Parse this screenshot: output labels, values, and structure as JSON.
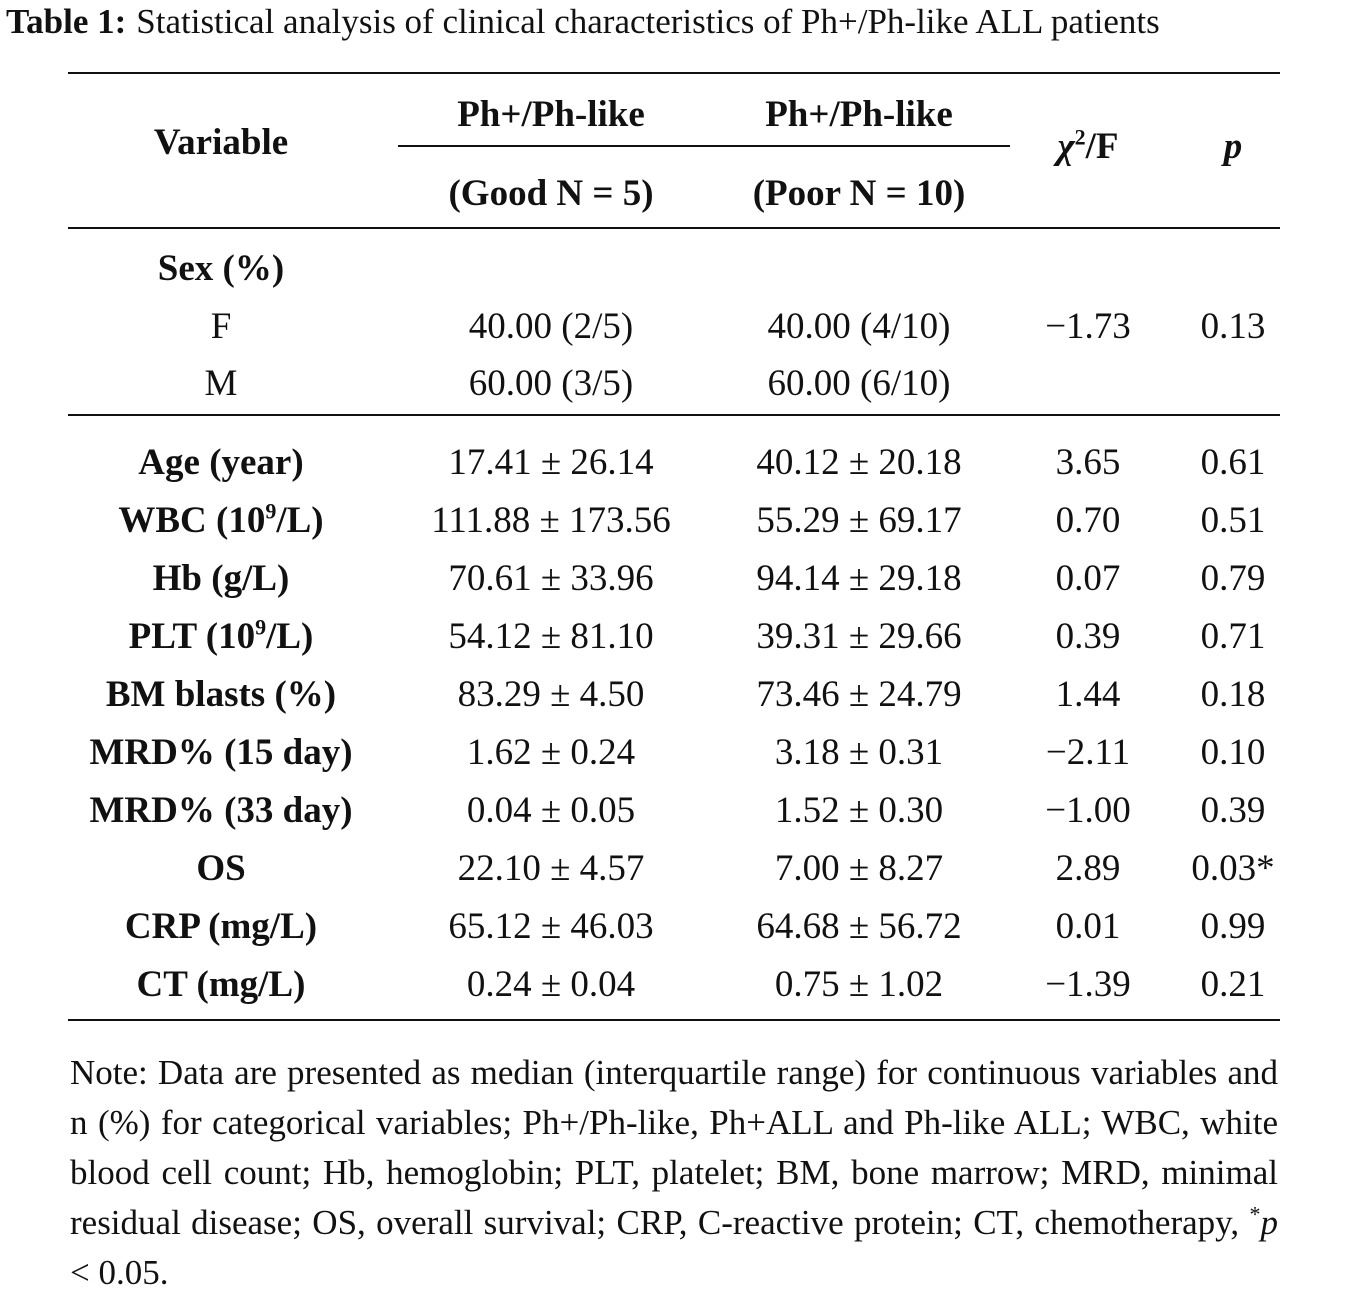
{
  "caption": {
    "label": "Table 1:",
    "text": "Statistical analysis of clinical characteristics of Ph+/Ph-like ALL patients"
  },
  "header": {
    "variable": "Variable",
    "group_good_top": "Ph+/Ph-like",
    "group_good_bottom": "(Good N = 5)",
    "group_poor_top": "Ph+/Ph-like",
    "group_poor_bottom": "(Poor N = 10)",
    "chi_symbol": "χ",
    "chi_sup": "2",
    "chi_suffix": "/F",
    "p": "p"
  },
  "sex_block": {
    "heading": "Sex (%)",
    "rows": [
      {
        "label": "F",
        "good": "40.00 (2/5)",
        "poor": "40.00 (4/10)",
        "stat": "−1.73",
        "p": "0.13"
      },
      {
        "label": "M",
        "good": "60.00 (3/5)",
        "poor": "60.00 (6/10)",
        "stat": "",
        "p": ""
      }
    ]
  },
  "rows": [
    {
      "label": "Age (year)",
      "good": "17.41 ± 26.14",
      "poor": "40.12 ± 20.18",
      "stat": "3.65",
      "p": "0.61"
    },
    {
      "label_pre": "WBC (10",
      "label_sup": "9",
      "label_post": "/L)",
      "good": "111.88 ± 173.56",
      "poor": "55.29 ± 69.17",
      "stat": "0.70",
      "p": "0.51"
    },
    {
      "label": "Hb (g/L)",
      "good": "70.61 ± 33.96",
      "poor": "94.14 ± 29.18",
      "stat": "0.07",
      "p": "0.79"
    },
    {
      "label_pre": "PLT (10",
      "label_sup": "9",
      "label_post": "/L)",
      "good": "54.12 ± 81.10",
      "poor": "39.31 ± 29.66",
      "stat": "0.39",
      "p": "0.71"
    },
    {
      "label": "BM blasts (%)",
      "good": "83.29 ± 4.50",
      "poor": "73.46 ± 24.79",
      "stat": "1.44",
      "p": "0.18"
    },
    {
      "label": "MRD% (15 day)",
      "good": "1.62 ± 0.24",
      "poor": "3.18 ± 0.31",
      "stat": "−2.11",
      "p": "0.10"
    },
    {
      "label": "MRD% (33 day)",
      "good": "0.04 ± 0.05",
      "poor": "1.52 ± 0.30",
      "stat": "−1.00",
      "p": "0.39"
    },
    {
      "label": "OS",
      "good": "22.10 ± 4.57",
      "poor": "7.00 ± 8.27",
      "stat": "2.89",
      "p": "0.03*"
    },
    {
      "label": "CRP (mg/L)",
      "good": "65.12 ± 46.03",
      "poor": "64.68 ± 56.72",
      "stat": "0.01",
      "p": "0.99"
    },
    {
      "label": "CT (mg/L)",
      "good": "0.24 ± 0.04",
      "poor": "0.75 ± 1.02",
      "stat": "−1.39",
      "p": "0.21"
    }
  ],
  "note": {
    "text": "Note: Data are presented as median (interquartile range) for continuous variables and n (%) for categorical variables; Ph+/Ph-like, Ph+ALL and Ph-like ALL; WBC, white blood cell count; Hb, hemoglobin; PLT, platelet; BM, bone marrow; MRD, minimal residual disease; OS, overall survival; CRP, C-reactive protein; CT, chemotherapy, ",
    "star": "*",
    "p_symbol": "p",
    "tail": " < 0.05."
  }
}
